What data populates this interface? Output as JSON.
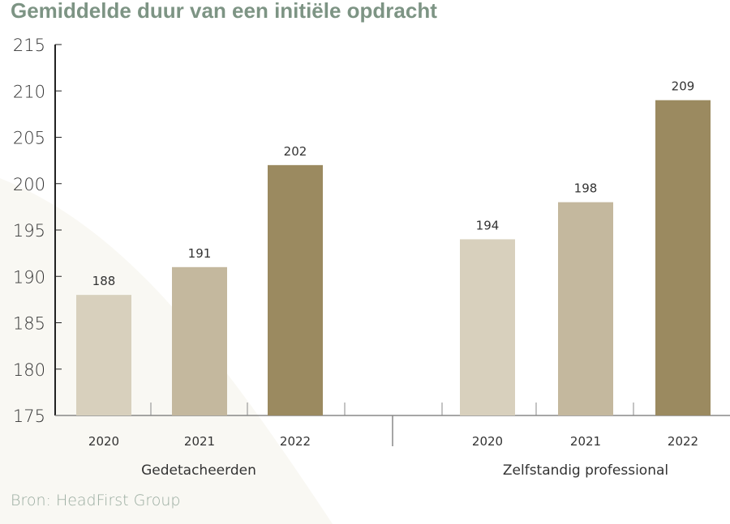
{
  "chart_data": {
    "type": "bar",
    "title": "Gemiddelde duur van een initiële opdracht",
    "groups": [
      "Gedetacheerden",
      "Zelfstandig professional"
    ],
    "categories": [
      "2020",
      "2021",
      "2022"
    ],
    "series": [
      {
        "group": "Gedetacheerden",
        "values": [
          188,
          191,
          202
        ]
      },
      {
        "group": "Zelfstandig professional",
        "values": [
          194,
          198,
          209
        ]
      }
    ],
    "colors": [
      "#d8d0bd",
      "#c4b89e",
      "#9b8a60"
    ],
    "ylim": [
      175,
      215
    ],
    "yticks": [
      175,
      180,
      185,
      190,
      195,
      200,
      205,
      210,
      215
    ],
    "grid": false,
    "source": "Bron: HeadFirst Group"
  }
}
